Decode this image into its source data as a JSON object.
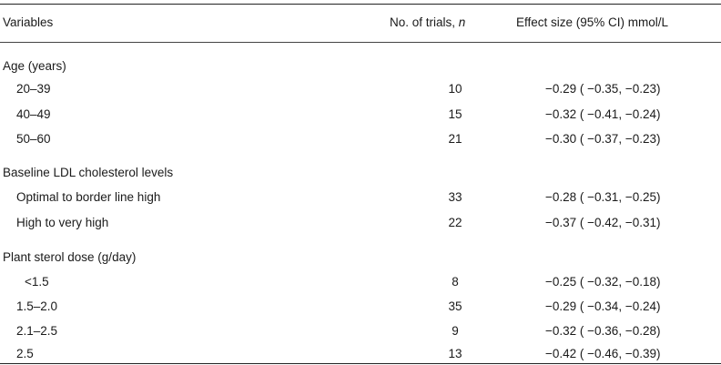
{
  "header": {
    "variables": "Variables",
    "trials_label": "No. of trials, ",
    "trials_italic": "n",
    "effect": "Effect size (95% CI) mmol/L"
  },
  "groups": [
    {
      "title": "Age (years)",
      "rows": [
        {
          "label": "20–39",
          "n": "10",
          "effect": "−0.29 ( −0.35,  −0.23)"
        },
        {
          "label": "40–49",
          "n": "15",
          "effect": "−0.32 ( −0.41,  −0.24)"
        },
        {
          "label": "50–60",
          "n": "21",
          "effect": "−0.30 ( −0.37,  −0.23)"
        }
      ]
    },
    {
      "title": "Baseline LDL cholesterol levels",
      "rows": [
        {
          "label": "Optimal to border line high",
          "n": "33",
          "effect": "−0.28 ( −0.31, −0.25)"
        },
        {
          "label": "High to very high",
          "n": "22",
          "effect": "−0.37 ( −0.42,  −0.31)"
        }
      ]
    },
    {
      "title": "Plant sterol dose (g/day)",
      "rows": [
        {
          "label": "<1.5",
          "n": "8",
          "effect": "−0.25 ( −0.32,  −0.18)"
        },
        {
          "label": "1.5–2.0",
          "n": "35",
          "effect": "−0.29 ( −0.34,  −0.24)"
        },
        {
          "label": "2.1–2.5",
          "n": "9",
          "effect": "−0.32 ( −0.36,  −0.28)"
        },
        {
          "label": "2.5",
          "n": "13",
          "effect": "−0.42 ( −0.46,  −0.39)"
        }
      ]
    }
  ]
}
